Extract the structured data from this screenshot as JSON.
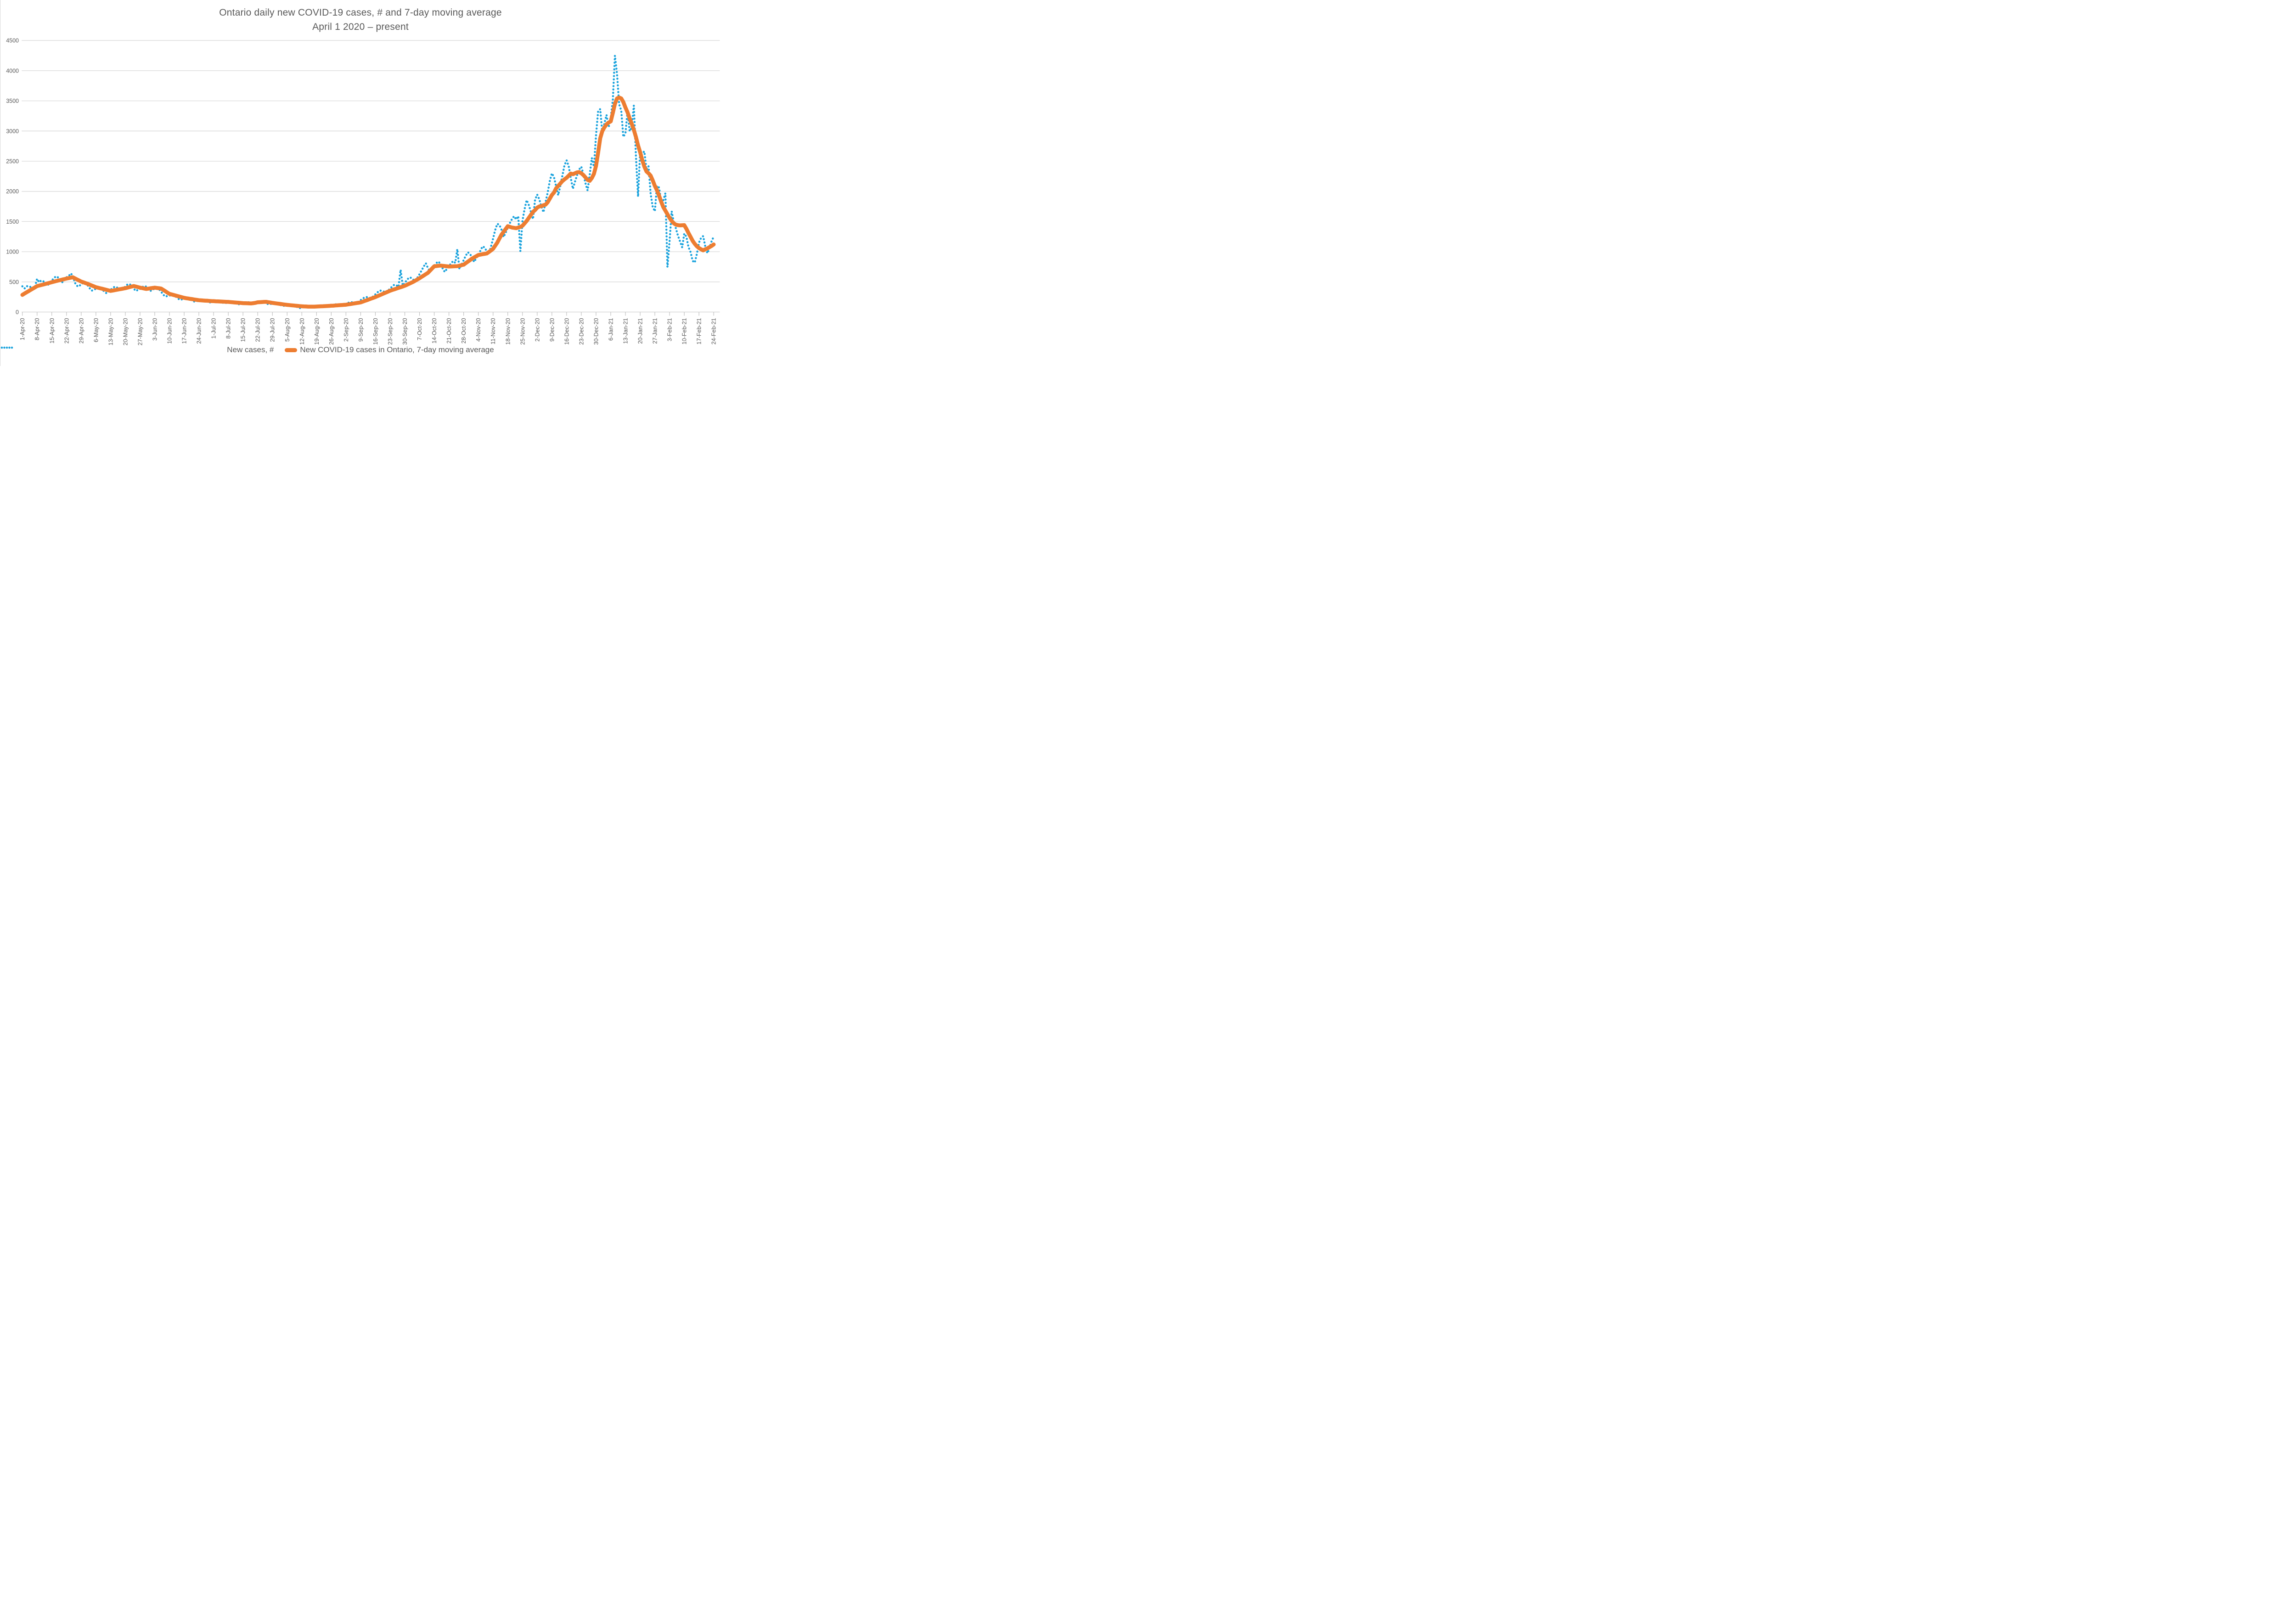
{
  "title": {
    "line1": "Ontario daily new COVID-19 cases, # and 7-day moving average",
    "line2": "April 1 2020 – present"
  },
  "colors": {
    "daily_series": "#1BA3DD",
    "moving_average_series": "#ED7D31",
    "gridline": "#D9D9D9",
    "axis_line": "#D0D0D0",
    "tick": "#BFBFBF",
    "text": "#595959"
  },
  "legend": {
    "items": [
      {
        "label": "New cases, #",
        "swatch": "dotted-blue-line"
      },
      {
        "label": "New COVID-19 cases in Ontario, 7-day moving average",
        "swatch": "solid-orange-line"
      }
    ]
  },
  "chart_data": {
    "type": "line",
    "title": "Ontario daily new COVID-19 cases, # and 7-day moving average",
    "subtitle": "April 1 2020 – present",
    "xlabel": "",
    "ylabel": "",
    "ylim": [
      0,
      4500
    ],
    "y_ticks": [
      0,
      500,
      1000,
      1500,
      2000,
      2500,
      3000,
      3500,
      4000,
      4500
    ],
    "grid": "horizontal",
    "legend_position": "bottom",
    "x_tick_interval_days": 7,
    "x_tick_labels": [
      "1-Apr-20",
      "8-Apr-20",
      "15-Apr-20",
      "22-Apr-20",
      "29-Apr-20",
      "6-May-20",
      "13-May-20",
      "20-May-20",
      "27-May-20",
      "3-Jun-20",
      "10-Jun-20",
      "17-Jun-20",
      "24-Jun-20",
      "1-Jul-20",
      "8-Jul-20",
      "15-Jul-20",
      "22-Jul-20",
      "29-Jul-20",
      "5-Aug-20",
      "12-Aug-20",
      "19-Aug-20",
      "26-Aug-20",
      "2-Sep-20",
      "9-Sep-20",
      "16-Sep-20",
      "23-Sep-20",
      "30-Sep-20",
      "7-Oct-20",
      "14-Oct-20",
      "21-Oct-20",
      "28-Oct-20",
      "4-Nov-20",
      "11-Nov-20",
      "18-Nov-20",
      "25-Nov-20",
      "2-Dec-20",
      "9-Dec-20",
      "16-Dec-20",
      "23-Dec-20",
      "30-Dec-20",
      "6-Jan-21",
      "13-Jan-21",
      "20-Jan-21",
      "27-Jan-21",
      "3-Feb-21",
      "10-Feb-21",
      "17-Feb-21",
      "24-Feb-21"
    ],
    "series": [
      {
        "name": "New cases, #",
        "style": "dotted",
        "color": "#1BA3DD",
        "values": [
          426,
          390,
          428,
          429,
          413,
          386,
          421,
          550,
          494,
          524,
          509,
          475,
          443,
          481,
          521,
          561,
          592,
          573,
          533,
          495,
          535,
          576,
          591,
          640,
          606,
          485,
          434,
          424,
          468,
          481,
          484,
          447,
          396,
          355,
          370,
          386,
          400,
          405,
          377,
          336,
          313,
          341,
          369,
          399,
          420,
          408,
          379,
          356,
          388,
          422,
          457,
          464,
          434,
          388,
          349,
          367,
          383,
          411,
          433,
          419,
          388,
          351,
          371,
          390,
          390,
          381,
          339,
          289,
          257,
          265,
          273,
          279,
          279,
          257,
          226,
          202,
          211,
          218,
          226,
          228,
          212,
          188,
          171,
          180,
          189,
          198,
          202,
          191,
          173,
          157,
          166,
          175,
          183,
          188,
          179,
          161,
          145,
          152,
          159,
          165,
          169,
          159,
          142,
          129,
          136,
          144,
          152,
          163,
          161,
          156,
          144,
          156,
          168,
          180,
          180,
          166,
          146,
          129,
          133,
          138,
          141,
          141,
          129,
          114,
          102,
          105,
          109,
          111,
          112,
          103,
          91,
          82,
          63,
          90,
          94,
          99,
          95,
          87,
          82,
          89,
          96,
          104,
          110,
          107,
          100,
          93,
          102,
          111,
          121,
          128,
          125,
          116,
          112,
          124,
          138,
          152,
          164,
          162,
          154,
          151,
          174,
          197,
          223,
          245,
          247,
          238,
          231,
          261,
          293,
          326,
          355,
          355,
          339,
          321,
          353,
          388,
          424,
          453,
          444,
          418,
          700,
          440,
          484,
          530,
          572,
          567,
          538,
          513,
          569,
          628,
          689,
          755,
          809,
          728,
          671,
          720,
          770,
          812,
          838,
          796,
          724,
          665,
          712,
          759,
          806,
          845,
          816,
          1042,
          713,
          785,
          860,
          933,
          989,
          965,
          900,
          831,
          892,
          945,
          1018,
          1088,
          1069,
          1005,
          967,
          1081,
          1215,
          1357,
          1461,
          1445,
          1366,
          1243,
          1316,
          1395,
          1473,
          1540,
          1588,
          1534,
          1589,
          1009,
          1516,
          1707,
          1855,
          1775,
          1661,
          1540,
          1860,
          1947,
          1869,
          1747,
          1654,
          1824,
          1980,
          2173,
          2299,
          2237,
          2083,
          1936,
          2092,
          2260,
          2433,
          2514,
          2415,
          2222,
          2042,
          2162,
          2270,
          2364,
          2409,
          2284,
          2131,
          2015,
          2275,
          2553,
          2408,
          2923,
          3328,
          3363,
          2964,
          3128,
          3266,
          3062,
          3215,
          3519,
          4249,
          3945,
          3443,
          3338,
          2903,
          2961,
          3326,
          2998,
          3056,
          3422,
          2578,
          1913,
          2655,
          2632,
          2662,
          2359,
          2417,
          1958,
          1740,
          1670,
          2093,
          2063,
          1837,
          1848,
          1969,
          745,
          1172,
          1670,
          1489,
          1388,
          1265,
          1168,
          1072,
          1300,
          1248,
          1076,
          994,
          847,
          820,
          964,
          1150,
          1228,
          1258,
          1087,
          975,
          1058,
          1172,
          1250
        ]
      },
      {
        "name": "New COVID-19 cases in Ontario, 7-day moving average",
        "style": "solid",
        "color": "#ED7D31",
        "values": [
          285,
          306,
          327,
          347,
          368,
          389,
          409,
          430,
          439,
          448,
          457,
          466,
          476,
          485,
          495,
          503,
          512,
          521,
          529,
          538,
          546,
          555,
          562,
          569,
          576,
          558,
          540,
          523,
          505,
          493,
          480,
          468,
          454,
          440,
          426,
          412,
          403,
          394,
          386,
          377,
          368,
          359,
          350,
          356,
          363,
          369,
          376,
          382,
          389,
          395,
          404,
          413,
          422,
          431,
          422,
          413,
          404,
          397,
          390,
          383,
          388,
          394,
          399,
          404,
          399,
          395,
          390,
          368,
          346,
          323,
          301,
          292,
          282,
          273,
          263,
          254,
          245,
          235,
          229,
          224,
          218,
          213,
          207,
          202,
          196,
          194,
          191,
          189,
          187,
          184,
          182,
          180,
          178,
          177,
          175,
          173,
          171,
          170,
          168,
          165,
          162,
          159,
          156,
          154,
          151,
          148,
          147,
          145,
          144,
          143,
          148,
          153,
          162,
          164,
          166,
          168,
          170,
          164,
          158,
          152,
          147,
          142,
          138,
          133,
          128,
          123,
          119,
          116,
          112,
          109,
          105,
          102,
          98,
          95,
          93,
          92,
          90,
          89,
          90,
          90,
          91,
          93,
          95,
          96,
          98,
          100,
          102,
          104,
          106,
          109,
          111,
          114,
          116,
          119,
          121,
          127,
          132,
          138,
          143,
          149,
          154,
          160,
          172,
          185,
          197,
          210,
          223,
          235,
          248,
          263,
          278,
          293,
          308,
          323,
          338,
          353,
          365,
          376,
          388,
          400,
          412,
          423,
          435,
          451,
          468,
          484,
          500,
          520,
          540,
          560,
          583,
          605,
          628,
          650,
          686,
          722,
          758,
          762,
          766,
          770,
          766,
          762,
          758,
          754,
          756,
          757,
          759,
          760,
          768,
          777,
          785,
          810,
          835,
          860,
          885,
          905,
          925,
          945,
          952,
          958,
          964,
          970,
          995,
          1020,
          1047,
          1099,
          1150,
          1215,
          1280,
          1328,
          1376,
          1423,
          1412,
          1400,
          1395,
          1390,
          1400,
          1410,
          1430,
          1470,
          1510,
          1560,
          1610,
          1660,
          1690,
          1730,
          1750,
          1755,
          1770,
          1780,
          1820,
          1880,
          1940,
          1980,
          2050,
          2090,
          2130,
          2170,
          2200,
          2225,
          2260,
          2295,
          2285,
          2300,
          2315,
          2320,
          2300,
          2270,
          2230,
          2190,
          2175,
          2220,
          2290,
          2420,
          2640,
          2880,
          3000,
          3060,
          3110,
          3140,
          3160,
          3300,
          3450,
          3540,
          3555,
          3540,
          3480,
          3390,
          3310,
          3210,
          3120,
          3020,
          2900,
          2760,
          2650,
          2520,
          2410,
          2330,
          2300,
          2260,
          2180,
          2090,
          2020,
          1930,
          1830,
          1740,
          1680,
          1620,
          1560,
          1510,
          1470,
          1448,
          1440,
          1436,
          1438,
          1440,
          1380,
          1310,
          1245,
          1180,
          1130,
          1090,
          1060,
          1040,
          1022,
          1040,
          1055,
          1075,
          1095,
          1120
        ]
      }
    ]
  }
}
